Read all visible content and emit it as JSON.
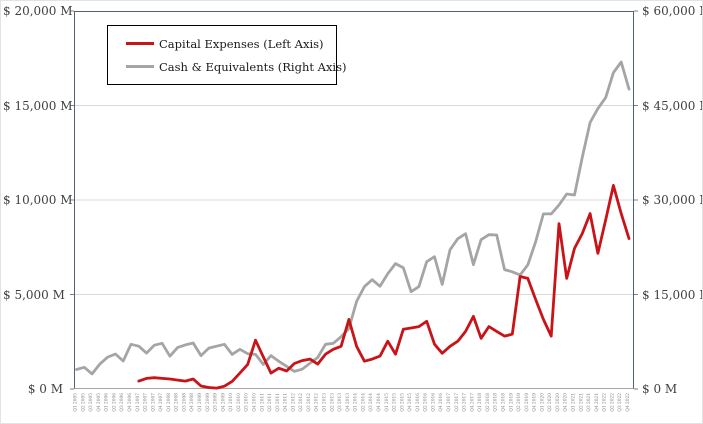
{
  "chart": {
    "legend": {
      "capex_label": "Capital Expenses (Left Axis)",
      "cash_label": "Cash & Equivalents (Right Axis)"
    },
    "colors": {
      "capex": "#c81418",
      "cash": "#a5a5a5",
      "gridline": "#d9d9d9",
      "plot_border": "#54616f",
      "axis_text": "#3f3f3f",
      "x_tick_text": "#7f7f7f"
    }
  },
  "chart_data": {
    "type": "line",
    "title": "",
    "xlabel": "",
    "ylabel_left": "",
    "ylabel_right": "",
    "grid": true,
    "legend_position": "top-left",
    "left_axis": {
      "range": [
        0,
        20000
      ],
      "tick_labels": [
        "$ 20,000 M",
        "$ 15,000 M",
        "$ 10,000 M",
        "$ 5,000 M",
        "$ 0 M"
      ],
      "tick_values": [
        20000,
        15000,
        10000,
        5000,
        0
      ]
    },
    "right_axis": {
      "range": [
        0,
        60000
      ],
      "tick_labels": [
        "$ 60,000 M",
        "$ 45,000 M",
        "$ 30,000 M",
        "$ 15,000 M",
        "$ 0 M"
      ],
      "tick_values": [
        60000,
        45000,
        30000,
        15000,
        0
      ]
    },
    "x_categories": [
      "Q1 2005",
      "Q2 2005",
      "Q3 2005",
      "Q4 2005",
      "Q1 2006",
      "Q2 2006",
      "Q3 2006",
      "Q4 2006",
      "Q1 2007",
      "Q2 2007",
      "Q3 2007",
      "Q4 2007",
      "Q1 2008",
      "Q2 2008",
      "Q3 2008",
      "Q4 2008",
      "Q1 2009",
      "Q2 2009",
      "Q3 2009",
      "Q4 2009",
      "Q1 2010",
      "Q2 2010",
      "Q3 2010",
      "Q4 2010",
      "Q1 2011",
      "Q2 2011",
      "Q3 2011",
      "Q4 2011",
      "Q1 2012",
      "Q2 2012",
      "Q3 2012",
      "Q4 2012",
      "Q1 2013",
      "Q2 2013",
      "Q3 2013",
      "Q4 2013",
      "Q1 2014",
      "Q2 2014",
      "Q3 2014",
      "Q4 2014",
      "Q1 2015",
      "Q2 2015",
      "Q3 2015",
      "Q4 2015",
      "Q1 2016",
      "Q2 2016",
      "Q3 2016",
      "Q4 2016",
      "Q1 2017",
      "Q2 2017",
      "Q3 2017",
      "Q4 2017",
      "Q1 2018",
      "Q2 2018",
      "Q3 2018",
      "Q4 2018",
      "Q1 2019",
      "Q2 2019",
      "Q3 2019",
      "Q4 2019",
      "Q1 2020",
      "Q2 2020",
      "Q3 2020",
      "Q4 2020",
      "Q1 2021",
      "Q2 2021",
      "Q3 2021",
      "Q4 2021",
      "Q1 2022",
      "Q2 2022",
      "Q3 2022",
      "Q4 2022"
    ],
    "series": [
      {
        "name": "Capital Expenses (Left Axis)",
        "axis": "left",
        "color": "#c81418",
        "start_index": 8,
        "values": [
          420,
          560,
          600,
          560,
          530,
          470,
          420,
          530,
          160,
          80,
          50,
          150,
          400,
          840,
          1300,
          2580,
          1700,
          840,
          1100,
          950,
          1350,
          1500,
          1580,
          1320,
          1840,
          2100,
          2260,
          3680,
          2260,
          1470,
          1580,
          1740,
          2530,
          1840,
          3160,
          3230,
          3300,
          3580,
          2370,
          1890,
          2260,
          2530,
          3050,
          3840,
          2680,
          3300,
          3050,
          2800,
          2900,
          5950,
          5850,
          4740,
          3680,
          2800,
          8750,
          5850,
          7440,
          8230,
          9280,
          7180,
          8950,
          10770,
          9280,
          7960
        ]
      },
      {
        "name": "Cash & Equivalents (Right Axis)",
        "axis": "right",
        "color": "#a5a5a5",
        "start_index": 0,
        "values": [
          3100,
          3450,
          2400,
          3950,
          5050,
          5550,
          4450,
          7100,
          6800,
          5700,
          6950,
          7250,
          5200,
          6600,
          7000,
          7300,
          5300,
          6500,
          6800,
          7100,
          5500,
          6300,
          5600,
          5500,
          3900,
          5300,
          4400,
          3600,
          2800,
          3150,
          4100,
          5000,
          7100,
          7250,
          8300,
          9600,
          13900,
          16250,
          17350,
          16300,
          18300,
          19900,
          19250,
          15450,
          16250,
          20200,
          21000,
          16600,
          22100,
          23850,
          24650,
          19750,
          23700,
          24500,
          24450,
          18950,
          18600,
          18100,
          19700,
          23350,
          27800,
          27800,
          29200,
          30950,
          30800,
          36800,
          42300,
          44500,
          46250,
          50200,
          51900,
          47600
        ]
      }
    ]
  }
}
